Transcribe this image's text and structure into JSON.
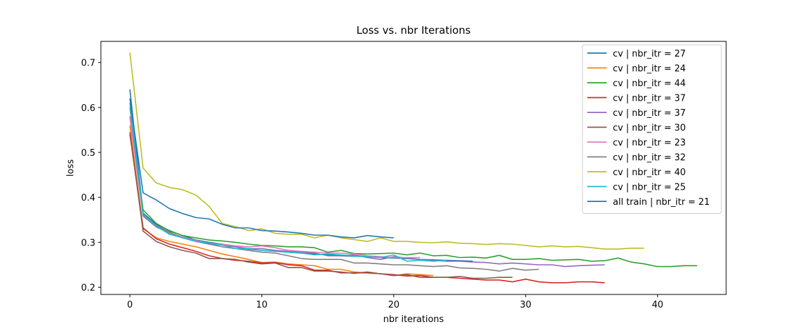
{
  "chart_data": {
    "type": "line",
    "title": "Loss vs. nbr Iterations",
    "xlabel": "nbr iterations",
    "ylabel": "loss",
    "xlim": [
      -2.2,
      45.2
    ],
    "ylim": [
      0.184,
      0.747
    ],
    "xticks": [
      0,
      10,
      20,
      30,
      40
    ],
    "yticks": [
      0.2,
      0.3,
      0.4,
      0.5,
      0.6,
      0.7
    ],
    "ytick_labels": [
      "0.2",
      "0.3",
      "0.4",
      "0.5",
      "0.6",
      "0.7"
    ],
    "grid": false,
    "legend_position": "top-right",
    "series": [
      {
        "name": "cv | nbr_itr = 27",
        "color": "#1f77b4",
        "y": [
          0.64,
          0.365,
          0.34,
          0.326,
          0.315,
          0.305,
          0.3,
          0.296,
          0.29,
          0.285,
          0.282,
          0.28,
          0.278,
          0.276,
          0.274,
          0.272,
          0.27,
          0.269,
          0.268,
          0.266,
          0.265,
          0.264,
          0.262,
          0.261,
          0.26,
          0.259,
          0.258
        ]
      },
      {
        "name": "cv | nbr_itr = 24",
        "color": "#ff7f0e",
        "y": [
          0.56,
          0.33,
          0.31,
          0.302,
          0.296,
          0.29,
          0.282,
          0.274,
          0.268,
          0.262,
          0.255,
          0.256,
          0.252,
          0.25,
          0.248,
          0.24,
          0.24,
          0.234,
          0.232,
          0.23,
          0.226,
          0.23,
          0.228,
          0.226
        ]
      },
      {
        "name": "cv | nbr_itr = 44",
        "color": "#2ca02c",
        "y": [
          0.58,
          0.372,
          0.342,
          0.325,
          0.315,
          0.31,
          0.305,
          0.303,
          0.3,
          0.296,
          0.293,
          0.292,
          0.29,
          0.29,
          0.288,
          0.278,
          0.282,
          0.275,
          0.274,
          0.275,
          0.276,
          0.272,
          0.276,
          0.27,
          0.271,
          0.266,
          0.267,
          0.265,
          0.271,
          0.262,
          0.262,
          0.264,
          0.26,
          0.261,
          0.262,
          0.258,
          0.259,
          0.265,
          0.256,
          0.252,
          0.246,
          0.246,
          0.248,
          0.248
        ]
      },
      {
        "name": "cv | nbr_itr = 37",
        "color": "#d62728",
        "y": [
          0.54,
          0.332,
          0.308,
          0.296,
          0.288,
          0.28,
          0.27,
          0.264,
          0.26,
          0.258,
          0.254,
          0.255,
          0.25,
          0.248,
          0.238,
          0.238,
          0.232,
          0.232,
          0.232,
          0.23,
          0.228,
          0.225,
          0.226,
          0.222,
          0.222,
          0.22,
          0.218,
          0.216,
          0.216,
          0.212,
          0.218,
          0.212,
          0.21,
          0.21,
          0.212,
          0.212,
          0.21
        ]
      },
      {
        "name": "cv | nbr_itr = 37",
        "color": "#9467bd",
        "y": [
          0.58,
          0.36,
          0.338,
          0.322,
          0.31,
          0.302,
          0.296,
          0.294,
          0.29,
          0.286,
          0.286,
          0.282,
          0.28,
          0.278,
          0.276,
          0.27,
          0.27,
          0.272,
          0.266,
          0.262,
          0.268,
          0.265,
          0.262,
          0.26,
          0.258,
          0.258,
          0.256,
          0.255,
          0.252,
          0.254,
          0.252,
          0.25,
          0.25,
          0.246,
          0.248,
          0.249,
          0.25
        ]
      },
      {
        "name": "cv | nbr_itr = 30",
        "color": "#8c564b",
        "y": [
          0.545,
          0.325,
          0.302,
          0.29,
          0.282,
          0.276,
          0.264,
          0.264,
          0.262,
          0.256,
          0.252,
          0.254,
          0.244,
          0.244,
          0.236,
          0.236,
          0.234,
          0.231,
          0.234,
          0.23,
          0.226,
          0.228,
          0.222,
          0.222,
          0.222,
          0.224,
          0.22,
          0.22,
          0.222,
          0.222
        ]
      },
      {
        "name": "cv | nbr_itr = 23",
        "color": "#e377c2",
        "y": [
          0.58,
          0.358,
          0.334,
          0.32,
          0.312,
          0.304,
          0.298,
          0.296,
          0.292,
          0.29,
          0.292,
          0.288,
          0.282,
          0.28,
          0.278,
          0.276,
          0.276,
          0.274,
          0.27,
          0.268,
          0.266,
          0.266,
          0.266
        ]
      },
      {
        "name": "cv | nbr_itr = 32",
        "color": "#7f7f7f",
        "y": [
          0.6,
          0.36,
          0.334,
          0.322,
          0.31,
          0.302,
          0.296,
          0.29,
          0.286,
          0.282,
          0.278,
          0.276,
          0.27,
          0.264,
          0.262,
          0.262,
          0.262,
          0.254,
          0.254,
          0.252,
          0.25,
          0.25,
          0.248,
          0.246,
          0.248,
          0.243,
          0.242,
          0.24,
          0.236,
          0.242,
          0.238,
          0.24
        ]
      },
      {
        "name": "cv | nbr_itr = 40",
        "color": "#bcbd22",
        "y": [
          0.722,
          0.465,
          0.432,
          0.422,
          0.417,
          0.405,
          0.38,
          0.342,
          0.335,
          0.326,
          0.33,
          0.32,
          0.318,
          0.318,
          0.31,
          0.316,
          0.31,
          0.306,
          0.302,
          0.31,
          0.302,
          0.302,
          0.3,
          0.299,
          0.301,
          0.298,
          0.297,
          0.295,
          0.297,
          0.296,
          0.293,
          0.29,
          0.292,
          0.29,
          0.291,
          0.288,
          0.285,
          0.285,
          0.287,
          0.287
        ]
      },
      {
        "name": "cv | nbr_itr = 25",
        "color": "#17becf",
        "y": [
          0.61,
          0.362,
          0.336,
          0.318,
          0.31,
          0.302,
          0.298,
          0.294,
          0.286,
          0.286,
          0.282,
          0.28,
          0.278,
          0.276,
          0.272,
          0.274,
          0.272,
          0.27,
          0.268,
          0.266,
          0.272,
          0.258,
          0.26,
          0.258,
          0.26
        ]
      },
      {
        "name": "all train | nbr_itr = 21",
        "color": "#1f77b4",
        "y": [
          0.62,
          0.41,
          0.394,
          0.375,
          0.364,
          0.355,
          0.352,
          0.34,
          0.332,
          0.332,
          0.326,
          0.325,
          0.323,
          0.32,
          0.316,
          0.316,
          0.312,
          0.31,
          0.315,
          0.312,
          0.31
        ]
      }
    ]
  }
}
